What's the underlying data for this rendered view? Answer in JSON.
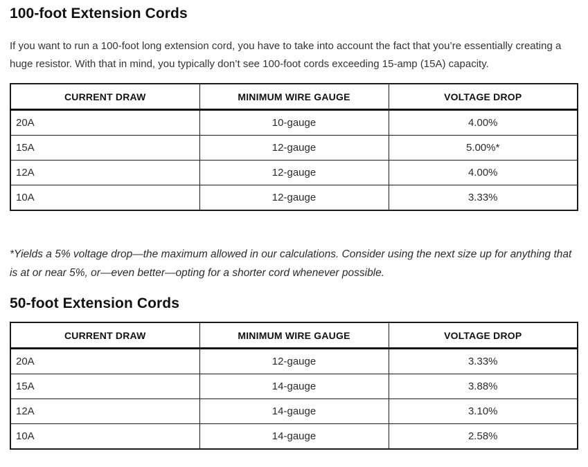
{
  "colors": {
    "background": "#ffffff",
    "heading_text": "#111111",
    "body_text": "#333333",
    "table_border": "#1a1a1a"
  },
  "sections": [
    {
      "heading": "100-foot Extension Cords",
      "intro": "If you want to run a 100-foot long extension cord, you have to take into account the fact that you’re essentially creating a huge resistor. With that in mind, you typically don’t see 100-foot cords exceeding 15-amp (15A) capacity.",
      "table": {
        "headers": [
          "CURRENT DRAW",
          "MINIMUM WIRE GAUGE",
          "VOLTAGE DROP"
        ],
        "rows": [
          [
            "20A",
            "10-gauge",
            "4.00%"
          ],
          [
            "15A",
            "12-gauge",
            "5.00%*"
          ],
          [
            "12A",
            "12-gauge",
            "4.00%"
          ],
          [
            "10A",
            "12-gauge",
            "3.33%"
          ]
        ]
      },
      "footnote": "*Yields a 5% voltage drop—the maximum allowed in our calculations. Consider using the next size up for anything that is at or near 5%, or—even better—opting for a shorter cord whenever possible."
    },
    {
      "heading": "50-foot Extension Cords",
      "table": {
        "headers": [
          "CURRENT DRAW",
          "MINIMUM WIRE GAUGE",
          "VOLTAGE DROP"
        ],
        "rows": [
          [
            "20A",
            "12-gauge",
            "3.33%"
          ],
          [
            "15A",
            "14-gauge",
            "3.88%"
          ],
          [
            "12A",
            "14-gauge",
            "3.10%"
          ],
          [
            "10A",
            "14-gauge",
            "2.58%"
          ]
        ]
      }
    }
  ]
}
